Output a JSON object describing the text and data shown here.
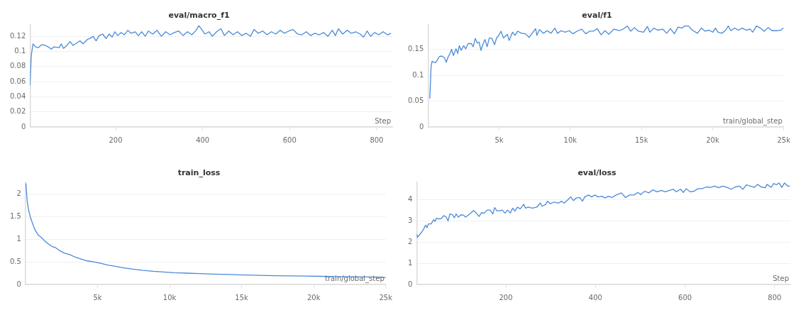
{
  "chart_data": [
    {
      "type": "line",
      "title": "eval/macro_f1",
      "xlabel": "Step",
      "marker": "none",
      "grid": "y",
      "xlim": [
        3,
        836
      ],
      "ylim": [
        0,
        0.135
      ],
      "xticks": [
        200,
        400,
        600,
        800
      ],
      "yticks": [
        0,
        0.02,
        0.04,
        0.06,
        0.08,
        0.1,
        0.12
      ],
      "x": [
        3,
        6,
        10,
        16,
        22,
        30,
        38,
        45,
        52,
        58,
        70,
        75,
        80,
        88,
        95,
        102,
        110,
        118,
        125,
        135,
        140,
        148,
        155,
        162,
        170,
        178,
        185,
        192,
        198,
        205,
        212,
        220,
        228,
        235,
        245,
        252,
        260,
        268,
        275,
        285,
        295,
        305,
        315,
        325,
        335,
        345,
        355,
        365,
        375,
        385,
        391,
        398,
        405,
        415,
        422,
        432,
        442,
        450,
        460,
        470,
        480,
        490,
        500,
        510,
        518,
        528,
        538,
        548,
        558,
        568,
        578,
        588,
        598,
        608,
        618,
        628,
        638,
        648,
        658,
        668,
        678,
        688,
        698,
        705,
        712,
        722,
        732,
        742,
        752,
        762,
        770,
        778,
        786,
        795,
        805,
        815,
        825,
        833
      ],
      "series": [
        {
          "color": "#4a8ad8",
          "values": [
            0.055,
            0.095,
            0.11,
            0.106,
            0.105,
            0.109,
            0.108,
            0.106,
            0.103,
            0.106,
            0.105,
            0.11,
            0.104,
            0.108,
            0.113,
            0.108,
            0.111,
            0.114,
            0.11,
            0.116,
            0.117,
            0.12,
            0.114,
            0.121,
            0.123,
            0.117,
            0.123,
            0.119,
            0.126,
            0.121,
            0.125,
            0.122,
            0.128,
            0.124,
            0.126,
            0.121,
            0.126,
            0.12,
            0.127,
            0.123,
            0.128,
            0.12,
            0.126,
            0.122,
            0.125,
            0.127,
            0.121,
            0.126,
            0.122,
            0.128,
            0.134,
            0.129,
            0.123,
            0.126,
            0.12,
            0.126,
            0.13,
            0.121,
            0.127,
            0.122,
            0.126,
            0.121,
            0.124,
            0.12,
            0.129,
            0.124,
            0.127,
            0.122,
            0.126,
            0.123,
            0.128,
            0.124,
            0.127,
            0.129,
            0.123,
            0.122,
            0.126,
            0.121,
            0.124,
            0.122,
            0.125,
            0.12,
            0.128,
            0.121,
            0.13,
            0.123,
            0.128,
            0.124,
            0.126,
            0.123,
            0.119,
            0.127,
            0.12,
            0.125,
            0.122,
            0.126,
            0.122,
            0.124
          ]
        }
      ]
    },
    {
      "type": "line",
      "title": "eval/f1",
      "xlabel": "train/global_step",
      "marker": "none",
      "grid": "y",
      "xlim": [
        0,
        25000
      ],
      "ylim": [
        0,
        0.197
      ],
      "xticks": [
        {
          "value": 5000,
          "label": "5k"
        },
        {
          "value": 10000,
          "label": "10k"
        },
        {
          "value": 15000,
          "label": "15k"
        },
        {
          "value": 20000,
          "label": "20k"
        },
        {
          "value": 25000,
          "label": "25k"
        }
      ],
      "yticks": [
        0,
        0.05,
        0.1,
        0.15
      ],
      "x": [
        130,
        217,
        289,
        523,
        650,
        794,
        975,
        1155,
        1282,
        1426,
        1552,
        1661,
        1787,
        1968,
        2094,
        2202,
        2329,
        2509,
        2653,
        2816,
        3051,
        3177,
        3321,
        3466,
        3592,
        3718,
        3863,
        4007,
        4152,
        4314,
        4495,
        4675,
        4819,
        4982,
        5126,
        5307,
        5578,
        5704,
        5939,
        6119,
        6300,
        6570,
        6841,
        7112,
        7292,
        7563,
        7653,
        7834,
        8105,
        8375,
        8646,
        8917,
        9097,
        9368,
        9639,
        9910,
        10181,
        10542,
        10812,
        11083,
        11354,
        11625,
        11895,
        12166,
        12437,
        12708,
        13069,
        13430,
        13700,
        14007,
        14242,
        14513,
        14783,
        15144,
        15415,
        15596,
        15866,
        16137,
        16498,
        16769,
        17040,
        17310,
        17581,
        17852,
        18032,
        18303,
        18574,
        18935,
        19206,
        19477,
        19747,
        20018,
        20199,
        20379,
        20650,
        20921,
        21101,
        21282,
        21552,
        21823,
        22094,
        22365,
        22635,
        22816,
        23087,
        23357,
        23628,
        23899,
        24170,
        24531,
        24801,
        24982
      ],
      "series": [
        {
          "color": "#4a8ad8",
          "values": [
            0.055,
            0.117,
            0.127,
            0.124,
            0.129,
            0.136,
            0.137,
            0.134,
            0.125,
            0.136,
            0.142,
            0.15,
            0.138,
            0.151,
            0.142,
            0.157,
            0.148,
            0.157,
            0.151,
            0.161,
            0.161,
            0.155,
            0.171,
            0.162,
            0.164,
            0.148,
            0.16,
            0.169,
            0.155,
            0.172,
            0.171,
            0.159,
            0.172,
            0.177,
            0.185,
            0.172,
            0.179,
            0.167,
            0.183,
            0.177,
            0.185,
            0.181,
            0.18,
            0.173,
            0.18,
            0.19,
            0.177,
            0.188,
            0.181,
            0.186,
            0.181,
            0.191,
            0.181,
            0.186,
            0.183,
            0.186,
            0.18,
            0.186,
            0.189,
            0.18,
            0.185,
            0.185,
            0.19,
            0.178,
            0.186,
            0.179,
            0.189,
            0.186,
            0.189,
            0.195,
            0.185,
            0.192,
            0.185,
            0.183,
            0.194,
            0.183,
            0.191,
            0.187,
            0.189,
            0.181,
            0.19,
            0.18,
            0.193,
            0.191,
            0.195,
            0.195,
            0.187,
            0.181,
            0.191,
            0.185,
            0.187,
            0.183,
            0.191,
            0.183,
            0.181,
            0.187,
            0.195,
            0.186,
            0.191,
            0.187,
            0.191,
            0.187,
            0.189,
            0.183,
            0.195,
            0.191,
            0.185,
            0.192,
            0.186,
            0.186,
            0.187,
            0.191
          ]
        }
      ]
    },
    {
      "type": "line",
      "title": "train_loss",
      "xlabel": "train/global_step",
      "marker": "none",
      "grid": "y",
      "xlim": [
        0,
        25000
      ],
      "ylim": [
        0,
        2.25
      ],
      "xticks": [
        {
          "value": 5000,
          "label": "5k"
        },
        {
          "value": 10000,
          "label": "10k"
        },
        {
          "value": 15000,
          "label": "15k"
        },
        {
          "value": 20000,
          "label": "20k"
        },
        {
          "value": 25000,
          "label": "25k"
        }
      ],
      "yticks": [
        0,
        0.5,
        1,
        1.5,
        2
      ],
      "x": [
        35,
        70,
        123,
        211,
        334,
        510,
        687,
        863,
        1127,
        1303,
        1567,
        1831,
        2095,
        2359,
        2711,
        3063,
        3415,
        3856,
        4296,
        4736,
        5176,
        5704,
        6232,
        6761,
        7465,
        8169,
        8873,
        9577,
        10282,
        11162,
        12042,
        13099,
        14155,
        15211,
        16268,
        17324,
        18380,
        19437,
        20493,
        21549,
        22606,
        23662,
        24718,
        25000
      ],
      "series": [
        {
          "color": "#4a8ad8",
          "values": [
            2.23,
            2.05,
            1.83,
            1.65,
            1.49,
            1.33,
            1.19,
            1.1,
            1.03,
            0.97,
            0.9,
            0.84,
            0.81,
            0.75,
            0.69,
            0.66,
            0.61,
            0.56,
            0.52,
            0.5,
            0.47,
            0.43,
            0.4,
            0.37,
            0.34,
            0.31,
            0.29,
            0.275,
            0.26,
            0.25,
            0.24,
            0.23,
            0.22,
            0.21,
            0.2,
            0.195,
            0.19,
            0.185,
            0.18,
            0.175,
            0.17,
            0.165,
            0.16,
            0.155
          ]
        }
      ]
    },
    {
      "type": "line",
      "title": "eval/loss",
      "xlabel": "Step",
      "marker": "none",
      "grid": "y",
      "xlim": [
        1,
        835
      ],
      "ylim": [
        0,
        4.8
      ],
      "xticks": [
        200,
        400,
        600,
        800
      ],
      "yticks": [
        0,
        1,
        2,
        3,
        4
      ],
      "x": [
        1,
        2.5,
        8.6,
        15,
        21,
        24,
        27,
        33,
        39,
        42,
        45,
        51,
        57,
        61,
        67,
        71,
        75,
        81,
        85,
        89,
        94,
        100,
        106,
        110,
        116,
        122,
        128,
        134,
        140,
        146,
        152,
        158,
        165,
        171,
        175,
        180,
        186,
        192,
        198,
        204,
        210,
        215,
        220,
        226,
        232,
        240,
        244,
        250,
        259,
        269,
        277,
        281,
        289,
        293,
        299,
        308,
        318,
        324,
        330,
        339,
        345,
        351,
        357,
        365,
        371,
        376,
        385,
        391,
        399,
        406,
        415,
        421,
        429,
        437,
        446,
        458,
        467,
        476,
        486,
        495,
        501,
        510,
        519,
        528,
        538,
        547,
        556,
        565,
        574,
        580,
        590,
        596,
        603,
        611,
        620,
        629,
        638,
        648,
        657,
        666,
        675,
        684,
        694,
        703,
        712,
        721,
        729,
        737,
        746,
        755,
        762,
        770,
        779,
        783,
        792,
        798,
        804,
        810,
        816,
        822,
        829,
        834
      ],
      "series": [
        {
          "color": "#4a8ad8",
          "values": [
            2.37,
            2.22,
            2.37,
            2.55,
            2.79,
            2.67,
            2.85,
            2.85,
            3.05,
            2.97,
            3.12,
            3.08,
            3.12,
            3.24,
            3.17,
            2.99,
            3.32,
            3.28,
            3.14,
            3.32,
            3.17,
            3.28,
            3.26,
            3.17,
            3.26,
            3.36,
            3.48,
            3.36,
            3.2,
            3.38,
            3.36,
            3.5,
            3.5,
            3.32,
            3.62,
            3.47,
            3.47,
            3.5,
            3.36,
            3.5,
            3.36,
            3.59,
            3.45,
            3.64,
            3.56,
            3.77,
            3.59,
            3.64,
            3.59,
            3.64,
            3.83,
            3.68,
            3.77,
            3.92,
            3.8,
            3.88,
            3.83,
            3.92,
            3.83,
            4.0,
            4.12,
            3.95,
            4.07,
            4.09,
            3.92,
            4.12,
            4.21,
            4.12,
            4.21,
            4.12,
            4.15,
            4.07,
            4.15,
            4.09,
            4.21,
            4.31,
            4.09,
            4.21,
            4.21,
            4.33,
            4.23,
            4.39,
            4.31,
            4.45,
            4.36,
            4.43,
            4.36,
            4.43,
            4.48,
            4.36,
            4.48,
            4.33,
            4.51,
            4.36,
            4.39,
            4.51,
            4.51,
            4.59,
            4.57,
            4.63,
            4.55,
            4.63,
            4.57,
            4.48,
            4.59,
            4.63,
            4.48,
            4.69,
            4.63,
            4.57,
            4.71,
            4.59,
            4.55,
            4.71,
            4.57,
            4.75,
            4.69,
            4.78,
            4.57,
            4.78,
            4.63,
            4.63
          ]
        }
      ]
    }
  ]
}
